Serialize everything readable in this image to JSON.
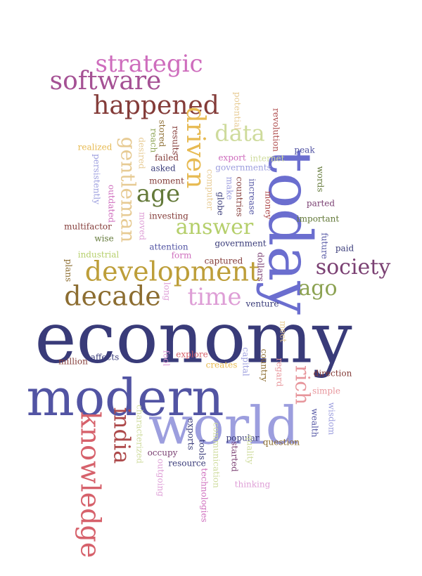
{
  "words": [
    {
      "text": "economy",
      "color": "#393b79"
    },
    {
      "text": "modern",
      "color": "#5254a3"
    },
    {
      "text": "world",
      "color": "#9c9ede"
    },
    {
      "text": "today",
      "color": "#6b6ecf"
    },
    {
      "text": "knowledge",
      "color": "#d6616b"
    },
    {
      "text": "development",
      "color": "#bd9e39"
    },
    {
      "text": "decade",
      "color": "#8c6d31"
    },
    {
      "text": "happened",
      "color": "#843c39"
    },
    {
      "text": "software",
      "color": "#a55194"
    },
    {
      "text": "strategic",
      "color": "#ce6dbd"
    },
    {
      "text": "society",
      "color": "#7b4173"
    },
    {
      "text": "answer",
      "color": "#b5cf6b"
    },
    {
      "text": "time",
      "color": "#de9ed6"
    },
    {
      "text": "ago",
      "color": "#8ca252"
    },
    {
      "text": "gentleman",
      "color": "#e7cb94"
    },
    {
      "text": "driven",
      "color": "#e7ba52"
    },
    {
      "text": "data",
      "color": "#cedb9c"
    },
    {
      "text": "age",
      "color": "#637939"
    },
    {
      "text": "india",
      "color": "#ad494a"
    },
    {
      "text": "rich",
      "color": "#e7969c"
    },
    {
      "text": "potential",
      "color": "#e7cb94"
    },
    {
      "text": "revolution",
      "color": "#ad494a"
    },
    {
      "text": "stored",
      "color": "#8c6d31"
    },
    {
      "text": "reach",
      "color": "#8ca252"
    },
    {
      "text": "results",
      "color": "#843c39"
    },
    {
      "text": "realized",
      "color": "#e7ba52"
    },
    {
      "text": "desired",
      "color": "#e7cb94"
    },
    {
      "text": "failed",
      "color": "#843c39"
    },
    {
      "text": "asked",
      "color": "#393b79"
    },
    {
      "text": "persistently",
      "color": "#9c9ede"
    },
    {
      "text": "outdated",
      "color": "#ce6dbd"
    },
    {
      "text": "moment",
      "color": "#843c39"
    },
    {
      "text": "investing",
      "color": "#843c39"
    },
    {
      "text": "moved",
      "color": "#de9ed6"
    },
    {
      "text": "multifactor",
      "color": "#843c39"
    },
    {
      "text": "wise",
      "color": "#637939"
    },
    {
      "text": "attention",
      "color": "#5254a3"
    },
    {
      "text": "form",
      "color": "#ce6dbd"
    },
    {
      "text": "industrial",
      "color": "#b5cf6b"
    },
    {
      "text": "plans",
      "color": "#8c6d31"
    },
    {
      "text": "long",
      "color": "#de9ed6"
    },
    {
      "text": "export",
      "color": "#ce6dbd"
    },
    {
      "text": "governments",
      "color": "#9c9ede"
    },
    {
      "text": "internet",
      "color": "#cedb9c"
    },
    {
      "text": "computer",
      "color": "#e7cb94"
    },
    {
      "text": "make",
      "color": "#9c9ede"
    },
    {
      "text": "globe",
      "color": "#393b79"
    },
    {
      "text": "countries",
      "color": "#843c39"
    },
    {
      "text": "increase",
      "color": "#5254a3"
    },
    {
      "text": "money",
      "color": "#ad494a"
    },
    {
      "text": "peak",
      "color": "#5254a3"
    },
    {
      "text": "words",
      "color": "#637939"
    },
    {
      "text": "parted",
      "color": "#7b4173"
    },
    {
      "text": "important",
      "color": "#637939"
    },
    {
      "text": "government",
      "color": "#393b79"
    },
    {
      "text": "captured",
      "color": "#843c39"
    },
    {
      "text": "dollars",
      "color": "#7b4173"
    },
    {
      "text": "future",
      "color": "#5254a3"
    },
    {
      "text": "paid",
      "color": "#393b79"
    },
    {
      "text": "venture",
      "color": "#393b79"
    },
    {
      "text": "meet",
      "color": "#e7cb94"
    },
    {
      "text": "million",
      "color": "#843c39"
    },
    {
      "text": "affects",
      "color": "#393b79"
    },
    {
      "text": "fool",
      "color": "#de9ed6"
    },
    {
      "text": "explore",
      "color": "#d6616b"
    },
    {
      "text": "creates",
      "color": "#e7ba52"
    },
    {
      "text": "capital",
      "color": "#9c9ede"
    },
    {
      "text": "country",
      "color": "#8c6d31"
    },
    {
      "text": "regard",
      "color": "#e7969c"
    },
    {
      "text": "direction",
      "color": "#843c39"
    },
    {
      "text": "simple",
      "color": "#e7969c"
    },
    {
      "text": "wisdom",
      "color": "#9c9ede"
    },
    {
      "text": "wealth",
      "color": "#5254a3"
    },
    {
      "text": "characterized",
      "color": "#cedb9c"
    },
    {
      "text": "exports",
      "color": "#393b79"
    },
    {
      "text": "tools",
      "color": "#393b79"
    },
    {
      "text": "communication",
      "color": "#cedb9c"
    },
    {
      "text": "popular",
      "color": "#393b79"
    },
    {
      "text": "quality",
      "color": "#cedb9c"
    },
    {
      "text": "started",
      "color": "#7b4173"
    },
    {
      "text": "question",
      "color": "#8c6d31"
    },
    {
      "text": "occupy",
      "color": "#7b4173"
    },
    {
      "text": "resource",
      "color": "#393b79"
    },
    {
      "text": "outgoing",
      "color": "#de9ed6"
    },
    {
      "text": "technologies",
      "color": "#ce6dbd"
    },
    {
      "text": "thinking",
      "color": "#de9ed6"
    }
  ]
}
